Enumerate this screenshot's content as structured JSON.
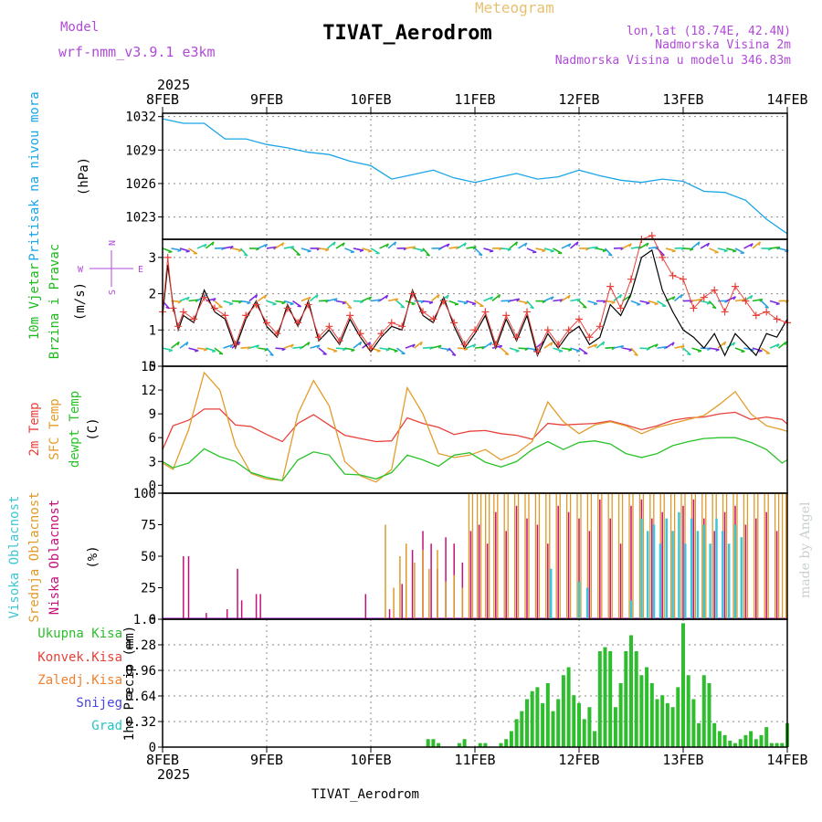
{
  "header": {
    "left_title": "Model",
    "left_subtitle": "wrf-nmm_v3.9.1  e3km",
    "center_top": "Meteogram",
    "station": "TIVAT_Aerodrom",
    "right_line1": "lon,lat (18.74E, 42.4N)",
    "right_line2": "Nadmorska Visina 2m",
    "right_line3": "Nadmorska Visina u modelu 346.83m"
  },
  "footer": {
    "station": "TIVAT_Aerodrom",
    "credit": "made by Angel"
  },
  "colors": {
    "pressure": "#1aa5e8",
    "wind_label": "#1db91d",
    "compass": "#b04ad8",
    "t2m": "#e8413a",
    "sfc": "#e39c2b",
    "dew": "#2ac32a",
    "high": "#3ec6d6",
    "mid": "#dd9a2a",
    "low": "#c4107a",
    "total": "#2dbd2d",
    "conv": "#e8413a",
    "frz": "#f08030",
    "snow": "#4646e0",
    "grad": "#26c4c4"
  },
  "chart_data": [
    {
      "type": "line",
      "name": "pressure",
      "labels": [
        "Pritisak na nivou mora",
        "(hPa)"
      ],
      "x_axis": {
        "year": "2025",
        "ticks": [
          "8FEB",
          "9FEB",
          "10FEB",
          "11FEB",
          "12FEB",
          "13FEB",
          "14FEB"
        ],
        "range_days": [
          0,
          6
        ]
      },
      "ylim": [
        1021,
        1032.3
      ],
      "yticks": [
        1023,
        1026,
        1029,
        1032
      ],
      "series": [
        {
          "name": "MSL pressure",
          "x": [
            0,
            0.2,
            0.4,
            0.6,
            0.8,
            1.0,
            1.2,
            1.4,
            1.6,
            1.8,
            2.0,
            2.2,
            2.4,
            2.6,
            2.8,
            3.0,
            3.2,
            3.4,
            3.6,
            3.8,
            4.0,
            4.2,
            4.4,
            4.6,
            4.8,
            5.0,
            5.2,
            5.4,
            5.6,
            5.8,
            6.0
          ],
          "values": [
            1031.8,
            1031.4,
            1031.4,
            1030.0,
            1030.0,
            1029.5,
            1029.2,
            1028.8,
            1028.6,
            1028.0,
            1027.6,
            1026.4,
            1026.8,
            1027.2,
            1026.5,
            1026.1,
            1026.5,
            1026.9,
            1026.4,
            1026.6,
            1027.2,
            1026.7,
            1026.3,
            1026.1,
            1026.4,
            1026.2,
            1025.3,
            1025.2,
            1024.5,
            1022.8,
            1021.5
          ]
        }
      ]
    },
    {
      "type": "line",
      "name": "wind",
      "labels": [
        "10m Vjetar",
        "Brzina i Pravac",
        "(m/s)"
      ],
      "compass": [
        "N",
        "S",
        "W",
        "E"
      ],
      "ylim": [
        0,
        3.5
      ],
      "yticks": [
        0,
        1,
        2,
        3
      ],
      "barb_rows": [
        3.25,
        1.8,
        0.5
      ],
      "series": [
        {
          "name": "speed",
          "x": [
            0,
            0.05,
            0.1,
            0.15,
            0.2,
            0.3,
            0.4,
            0.5,
            0.6,
            0.7,
            0.8,
            0.9,
            1.0,
            1.1,
            1.2,
            1.3,
            1.4,
            1.5,
            1.6,
            1.7,
            1.8,
            1.9,
            2.0,
            2.1,
            2.2,
            2.3,
            2.4,
            2.5,
            2.6,
            2.7,
            2.8,
            2.9,
            3.0,
            3.1,
            3.2,
            3.3,
            3.4,
            3.5,
            3.6,
            3.7,
            3.8,
            3.9,
            4.0,
            4.1,
            4.2,
            4.3,
            4.4,
            4.5,
            4.6,
            4.7,
            4.8,
            4.9,
            5.0,
            5.1,
            5.2,
            5.3,
            5.4,
            5.5,
            5.6,
            5.7,
            5.8,
            5.9,
            6.0
          ],
          "values": [
            1.4,
            2.8,
            1.7,
            1.0,
            1.4,
            1.2,
            2.1,
            1.5,
            1.3,
            0.5,
            1.3,
            1.8,
            1.1,
            0.8,
            1.7,
            1.1,
            1.8,
            0.7,
            1.0,
            0.6,
            1.3,
            0.8,
            0.4,
            0.8,
            1.1,
            1.0,
            2.1,
            1.4,
            1.2,
            1.9,
            1.1,
            0.5,
            0.9,
            1.4,
            0.5,
            1.3,
            0.7,
            1.4,
            0.3,
            0.9,
            0.5,
            0.9,
            1.1,
            0.6,
            0.8,
            1.7,
            1.4,
            2.0,
            3.0,
            3.2,
            2.1,
            1.5,
            1.0,
            0.8,
            0.5,
            0.9,
            0.3,
            0.9,
            0.6,
            0.3,
            0.9,
            0.8,
            1.3
          ]
        },
        {
          "name": "gust",
          "x": [
            0,
            0.05,
            0.1,
            0.15,
            0.2,
            0.3,
            0.4,
            0.5,
            0.6,
            0.7,
            0.8,
            0.9,
            1.0,
            1.1,
            1.2,
            1.3,
            1.4,
            1.5,
            1.6,
            1.7,
            1.8,
            1.9,
            2.0,
            2.1,
            2.2,
            2.3,
            2.4,
            2.5,
            2.6,
            2.7,
            2.8,
            2.9,
            3.0,
            3.1,
            3.2,
            3.3,
            3.4,
            3.5,
            3.6,
            3.7,
            3.8,
            3.9,
            4.0,
            4.1,
            4.2,
            4.3,
            4.4,
            4.5,
            4.6,
            4.7,
            4.8,
            4.9,
            5.0,
            5.1,
            5.2,
            5.3,
            5.4,
            5.5,
            5.6,
            5.7,
            5.8,
            5.9,
            6.0
          ],
          "values": [
            1.5,
            3.0,
            1.6,
            1.1,
            1.5,
            1.3,
            1.9,
            1.6,
            1.4,
            0.6,
            1.4,
            1.7,
            1.2,
            0.9,
            1.6,
            1.2,
            1.7,
            0.8,
            1.1,
            0.7,
            1.4,
            0.9,
            0.5,
            0.9,
            1.2,
            1.1,
            2.0,
            1.5,
            1.3,
            1.8,
            1.2,
            0.6,
            1.0,
            1.5,
            0.6,
            1.4,
            0.8,
            1.5,
            0.4,
            1.0,
            0.6,
            1.0,
            1.3,
            0.8,
            1.1,
            2.2,
            1.6,
            2.4,
            3.5,
            3.6,
            3.0,
            2.5,
            2.4,
            1.6,
            1.9,
            2.1,
            1.5,
            2.2,
            1.8,
            1.4,
            1.5,
            1.3,
            1.2
          ]
        }
      ]
    },
    {
      "type": "line",
      "name": "temperature",
      "labels": [
        "2m Temp",
        "SFC Temp",
        "dewpt Temp",
        "(C)"
      ],
      "ylim": [
        -1,
        15
      ],
      "yticks": [
        0,
        3,
        6,
        9,
        12,
        15
      ],
      "series": [
        {
          "name": "2m Temp",
          "x": [
            0,
            0.1,
            0.25,
            0.4,
            0.55,
            0.7,
            0.85,
            1.0,
            1.15,
            1.3,
            1.45,
            1.6,
            1.75,
            1.9,
            2.05,
            2.2,
            2.35,
            2.5,
            2.65,
            2.8,
            2.95,
            3.1,
            3.25,
            3.4,
            3.55,
            3.7,
            3.85,
            4.0,
            4.15,
            4.3,
            4.45,
            4.6,
            4.75,
            4.9,
            5.05,
            5.2,
            5.35,
            5.5,
            5.65,
            5.8,
            5.95,
            6.0
          ],
          "values": [
            4.5,
            7.5,
            8.2,
            9.6,
            9.6,
            7.6,
            7.4,
            6.4,
            5.5,
            7.8,
            8.9,
            7.6,
            6.3,
            5.9,
            5.5,
            5.6,
            8.5,
            7.8,
            7.3,
            6.4,
            6.8,
            6.9,
            6.5,
            6.3,
            5.8,
            7.8,
            7.6,
            7.7,
            7.8,
            8.1,
            7.6,
            7.0,
            7.5,
            8.2,
            8.5,
            8.6,
            9.0,
            9.2,
            8.3,
            8.6,
            8.3,
            7.7
          ]
        },
        {
          "name": "SFC Temp",
          "x": [
            0,
            0.1,
            0.25,
            0.4,
            0.55,
            0.7,
            0.85,
            1.0,
            1.15,
            1.3,
            1.45,
            1.6,
            1.75,
            1.9,
            2.05,
            2.2,
            2.35,
            2.5,
            2.65,
            2.8,
            2.95,
            3.1,
            3.25,
            3.4,
            3.55,
            3.7,
            3.85,
            4.0,
            4.15,
            4.3,
            4.45,
            4.6,
            4.75,
            4.9,
            5.05,
            5.2,
            5.35,
            5.5,
            5.65,
            5.8,
            5.95,
            6.0
          ],
          "values": [
            2.8,
            2.0,
            7.0,
            14.2,
            12.0,
            5.0,
            1.5,
            0.8,
            0.6,
            9.0,
            13.2,
            10.0,
            3.0,
            1.2,
            0.4,
            2.0,
            12.3,
            9.0,
            4.0,
            3.5,
            3.8,
            4.5,
            3.2,
            4.0,
            5.5,
            10.5,
            8.0,
            6.5,
            7.6,
            8.0,
            7.5,
            6.5,
            7.3,
            7.8,
            8.3,
            8.8,
            10.2,
            11.8,
            9.0,
            7.5,
            7.0,
            6.8
          ]
        },
        {
          "name": "dewpt Temp",
          "x": [
            0,
            0.1,
            0.25,
            0.4,
            0.55,
            0.7,
            0.85,
            1.0,
            1.15,
            1.3,
            1.45,
            1.6,
            1.75,
            1.9,
            2.05,
            2.2,
            2.35,
            2.5,
            2.65,
            2.8,
            2.95,
            3.1,
            3.25,
            3.4,
            3.55,
            3.7,
            3.85,
            4.0,
            4.15,
            4.3,
            4.45,
            4.6,
            4.75,
            4.9,
            5.05,
            5.2,
            5.35,
            5.5,
            5.65,
            5.8,
            5.95,
            6.0
          ],
          "values": [
            3.0,
            2.2,
            2.8,
            4.6,
            3.6,
            3.0,
            1.6,
            1.0,
            0.6,
            3.2,
            4.2,
            3.8,
            1.4,
            1.3,
            0.8,
            1.6,
            3.8,
            3.2,
            2.4,
            3.8,
            4.1,
            2.9,
            2.3,
            3.0,
            4.5,
            5.5,
            4.5,
            5.4,
            5.6,
            5.2,
            4.0,
            3.5,
            4.0,
            5.0,
            5.5,
            5.9,
            6.0,
            6.0,
            5.4,
            4.5,
            2.8,
            3.2
          ]
        }
      ]
    },
    {
      "type": "bar",
      "name": "cloud",
      "labels": [
        "Visoka Oblacnost",
        "Srednja Oblacnost",
        "Niska Oblacnost",
        "(%)"
      ],
      "ylim": [
        0,
        100
      ],
      "yticks": [
        0,
        25,
        50,
        75,
        100
      ],
      "series": [
        {
          "name": "Niska Oblacnost",
          "x": [
            0.2,
            0.25,
            0.42,
            0.62,
            0.72,
            0.76,
            0.9,
            0.94,
            1.95,
            2.18,
            2.3,
            2.4,
            2.5,
            2.58,
            2.64,
            2.72,
            2.8,
            2.88,
            2.96,
            3.04,
            3.12,
            3.2,
            3.3,
            3.4,
            3.5,
            3.6,
            3.7,
            3.8,
            3.9,
            4.0,
            4.1,
            4.2,
            4.3,
            4.4,
            4.5,
            4.6,
            4.7,
            4.8,
            4.9,
            5.0,
            5.1,
            5.2,
            5.3,
            5.4,
            5.5,
            5.6,
            5.7,
            5.8,
            5.9
          ],
          "values": [
            50,
            50,
            5,
            8,
            40,
            15,
            20,
            20,
            20,
            8,
            28,
            55,
            70,
            60,
            40,
            65,
            60,
            45,
            70,
            75,
            60,
            85,
            70,
            90,
            80,
            75,
            60,
            90,
            85,
            80,
            70,
            95,
            80,
            60,
            90,
            95,
            80,
            85,
            70,
            90,
            95,
            80,
            70,
            85,
            90,
            75,
            80,
            85,
            70
          ]
        },
        {
          "name": "Srednja Oblacnost",
          "x": [
            2.14,
            2.22,
            2.28,
            2.34,
            2.42,
            2.5,
            2.56,
            2.64,
            2.72,
            2.8,
            2.88,
            2.96,
            3.04,
            3.12,
            3.2,
            3.3,
            3.4,
            3.5,
            3.6,
            3.7,
            3.8,
            3.9,
            4.0,
            4.1,
            4.2,
            4.3,
            4.4,
            4.5,
            4.6,
            4.7,
            4.8,
            4.9,
            5.0,
            5.1,
            5.2,
            5.3,
            5.4,
            5.5,
            5.6,
            5.7,
            5.8,
            5.9,
            5.97
          ],
          "values": [
            75,
            25,
            50,
            60,
            45,
            55,
            40,
            55,
            30,
            35,
            25,
            100,
            100,
            100,
            100,
            100,
            100,
            100,
            100,
            100,
            100,
            100,
            100,
            100,
            100,
            100,
            100,
            100,
            100,
            100,
            100,
            100,
            100,
            100,
            100,
            100,
            100,
            100,
            100,
            100,
            100,
            100,
            100
          ]
        },
        {
          "name": "Visoka Oblacnost",
          "x": [
            3.73,
            4.0,
            4.08,
            4.5,
            4.6,
            4.66,
            4.72,
            4.78,
            4.84,
            4.9,
            4.96,
            5.02,
            5.08,
            5.14,
            5.2,
            5.26,
            5.32,
            5.38,
            5.44,
            5.5,
            5.56
          ],
          "values": [
            40,
            30,
            25,
            15,
            80,
            70,
            75,
            60,
            80,
            70,
            85,
            60,
            80,
            70,
            75,
            60,
            80,
            70,
            60,
            75,
            65
          ]
        }
      ]
    },
    {
      "type": "bar",
      "name": "precip",
      "labels": [
        "Ukupna Kisa",
        "Konvek.Kisa",
        "Zaledj.Kisa",
        "Snijeg",
        "Grad",
        "1hr Precip (mm)"
      ],
      "ylim": [
        0,
        1.6
      ],
      "yticks": [
        0,
        0.32,
        0.64,
        0.96,
        1.28,
        1.6
      ],
      "series": [
        {
          "name": "Ukupna Kisa",
          "x": [
            2.55,
            2.6,
            2.65,
            2.85,
            2.9,
            3.05,
            3.1,
            3.25,
            3.3,
            3.35,
            3.4,
            3.45,
            3.5,
            3.55,
            3.6,
            3.65,
            3.7,
            3.75,
            3.8,
            3.85,
            3.9,
            3.95,
            4.0,
            4.05,
            4.1,
            4.15,
            4.2,
            4.25,
            4.3,
            4.35,
            4.4,
            4.45,
            4.5,
            4.55,
            4.6,
            4.65,
            4.7,
            4.75,
            4.8,
            4.85,
            4.9,
            4.95,
            5.0,
            5.05,
            5.1,
            5.15,
            5.2,
            5.25,
            5.3,
            5.35,
            5.4,
            5.45,
            5.5,
            5.55,
            5.6,
            5.65,
            5.7,
            5.75,
            5.8,
            5.85,
            5.9,
            5.95,
            6.0
          ],
          "values": [
            0.1,
            0.1,
            0.05,
            0.05,
            0.1,
            0.05,
            0.05,
            0.05,
            0.1,
            0.2,
            0.35,
            0.45,
            0.6,
            0.7,
            0.75,
            0.55,
            0.8,
            0.45,
            0.6,
            0.9,
            1.0,
            0.65,
            0.55,
            0.35,
            0.5,
            0.2,
            1.2,
            1.25,
            1.2,
            0.5,
            0.8,
            1.2,
            1.4,
            1.2,
            0.9,
            1.0,
            0.8,
            0.6,
            0.65,
            0.55,
            0.5,
            0.75,
            1.55,
            0.9,
            0.6,
            0.3,
            0.9,
            0.8,
            0.3,
            0.2,
            0.15,
            0.08,
            0.05,
            0.1,
            0.15,
            0.2,
            0.1,
            0.15,
            0.25,
            0.05,
            0.05,
            0.05,
            0.3
          ]
        }
      ]
    }
  ]
}
